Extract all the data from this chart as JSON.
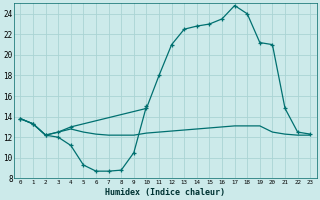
{
  "xlabel": "Humidex (Indice chaleur)",
  "bg_color": "#cceaea",
  "grid_color": "#aad4d4",
  "line_color": "#007070",
  "xlim": [
    -0.5,
    23.5
  ],
  "ylim": [
    8,
    25
  ],
  "xticks": [
    0,
    1,
    2,
    3,
    4,
    5,
    6,
    7,
    8,
    9,
    10,
    11,
    12,
    13,
    14,
    15,
    16,
    17,
    18,
    19,
    20,
    21,
    22,
    23
  ],
  "yticks": [
    8,
    10,
    12,
    14,
    16,
    18,
    20,
    22,
    24
  ],
  "line1_x": [
    0,
    1,
    2,
    3,
    4,
    5,
    6,
    7,
    8,
    9,
    10
  ],
  "line1_y": [
    13.8,
    13.3,
    12.2,
    12.0,
    11.2,
    9.3,
    8.7,
    8.7,
    8.8,
    10.5,
    15.0
  ],
  "line2_x": [
    0,
    1,
    2,
    3,
    4,
    5,
    6,
    7,
    8,
    9,
    10,
    11,
    12,
    13,
    14,
    15,
    16,
    17,
    18,
    19,
    20,
    21,
    22,
    23
  ],
  "line2_y": [
    13.8,
    13.3,
    12.2,
    12.5,
    12.8,
    12.5,
    12.3,
    12.2,
    12.2,
    12.2,
    12.4,
    12.5,
    12.6,
    12.7,
    12.8,
    12.9,
    13.0,
    13.1,
    13.1,
    13.1,
    12.5,
    12.3,
    12.2,
    12.2
  ],
  "line3_x": [
    0,
    1,
    2,
    3,
    4,
    10,
    11,
    12,
    13,
    14,
    15,
    16,
    17,
    18,
    19,
    20,
    21,
    22,
    23
  ],
  "line3_y": [
    13.8,
    13.3,
    12.2,
    12.5,
    13.0,
    14.8,
    18.0,
    21.0,
    22.5,
    22.8,
    23.0,
    23.5,
    24.8,
    24.0,
    21.2,
    21.0,
    14.8,
    12.5,
    12.3
  ],
  "markersize": 3.5,
  "linewidth": 0.9
}
